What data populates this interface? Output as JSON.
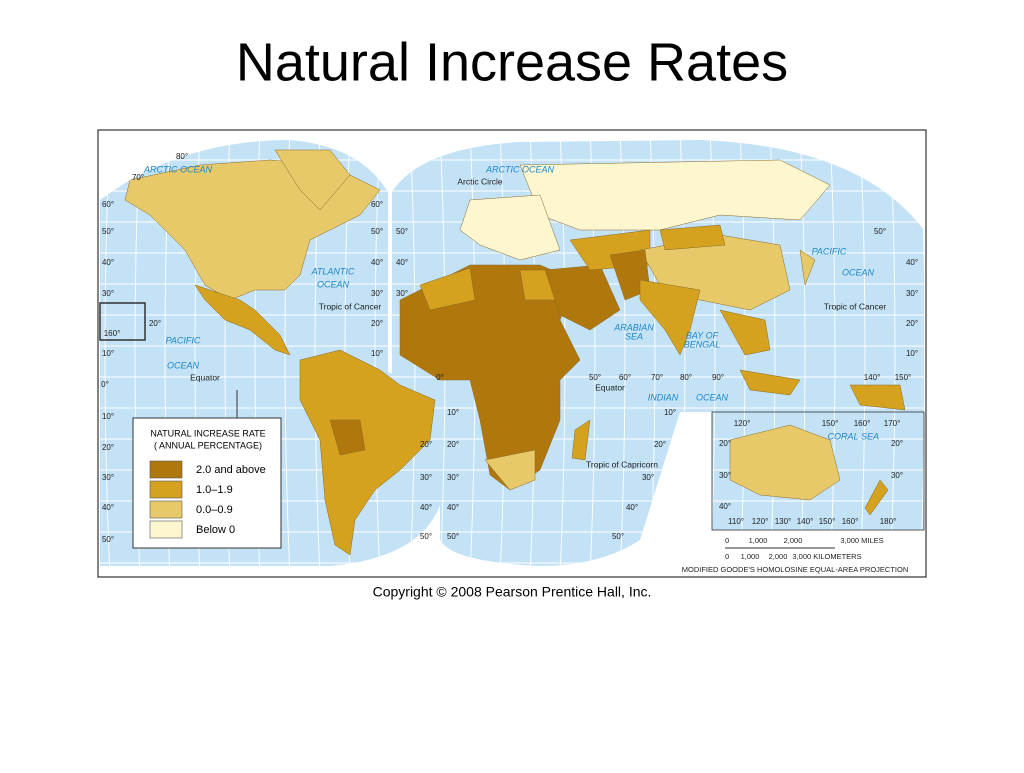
{
  "title": "Natural Increase Rates",
  "copyright": "Copyright © 2008 Pearson Prentice Hall, Inc.",
  "map": {
    "legend": {
      "title": [
        "NATURAL INCREASE RATE",
        "( ANNUAL PERCENTAGE)"
      ],
      "items": [
        {
          "label": "2.0 and above",
          "color": "#b0780c"
        },
        {
          "label": "1.0–1.9",
          "color": "#d4a21e"
        },
        {
          "label": "0.0–0.9",
          "color": "#e8c96a"
        },
        {
          "label": "Below 0",
          "color": "#fdf6cf"
        }
      ]
    },
    "oceans": [
      "ARCTIC OCEAN",
      "ARCTIC OCEAN",
      "ATLANTIC",
      "OCEAN",
      "PACIFIC",
      "OCEAN",
      "PACIFIC",
      "OCEAN",
      "ARABIAN",
      "SEA",
      "BAY OF",
      "BENGAL",
      "INDIAN",
      "OCEAN",
      "CORAL",
      "SEA"
    ],
    "lines": [
      "Arctic Circle",
      "Tropic of Cancer",
      "Tropic of Cancer",
      "Equator",
      "Equator",
      "Tropic of Capricorn"
    ],
    "degrees": [
      "80°",
      "70°",
      "60°",
      "50°",
      "40°",
      "30°",
      "160°",
      "20°",
      "10°",
      "0°",
      "10°",
      "20°",
      "30°",
      "40°",
      "50°",
      "60°",
      "50°",
      "40°",
      "30°",
      "20°",
      "10°",
      "0°",
      "50°",
      "40°",
      "30°",
      "10°",
      "20°",
      "30°",
      "40°",
      "50°",
      "20°",
      "30°",
      "40°",
      "50°",
      "50°",
      "60°",
      "70°",
      "80°",
      "90°",
      "10°",
      "20°",
      "30°",
      "40°",
      "50°",
      "50°",
      "40°",
      "30°",
      "20°",
      "10°",
      "140°",
      "150°",
      "120°",
      "150°",
      "160°",
      "170°",
      "20°",
      "30°",
      "40°",
      "30°",
      "20°",
      "110°",
      "120°",
      "130°",
      "140°",
      "150°",
      "160°",
      "180°"
    ],
    "scale": {
      "miles": [
        "0",
        "1,000",
        "2,000",
        "3,000 MILES"
      ],
      "kilometers": [
        "0",
        "1,000",
        "2,000",
        "3,000 KILOMETERS"
      ]
    },
    "projection": "MODIFIED GOODE'S HOMOLOSINE EQUAL-AREA PROJECTION"
  }
}
